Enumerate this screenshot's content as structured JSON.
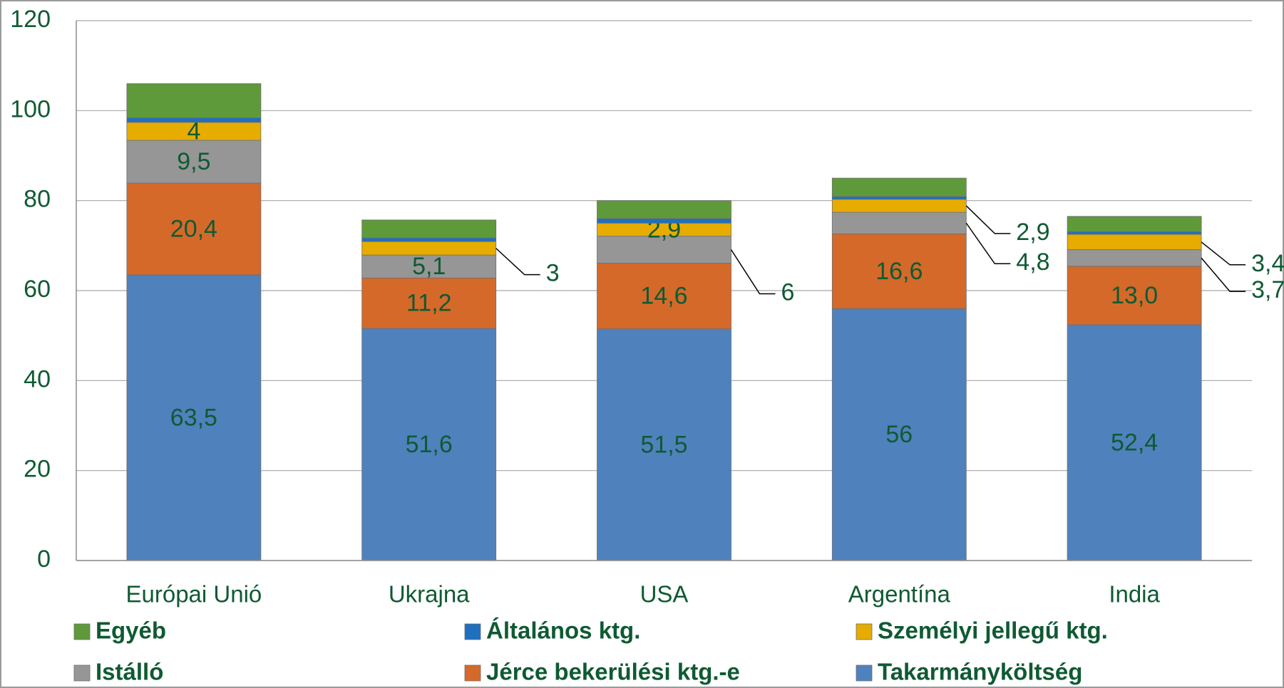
{
  "chart_data": {
    "type": "stacked_bar",
    "categories": [
      "Európai Unió",
      "Ukrajna",
      "USA",
      "Argentína",
      "India"
    ],
    "series": [
      {
        "name": "Takarmányköltség",
        "color": "#4f81bd",
        "values": [
          63.5,
          51.6,
          51.5,
          56,
          52.4
        ],
        "value_labels": [
          "63,5",
          "51,6",
          "51,5",
          "56",
          "52,4"
        ]
      },
      {
        "name": "Jérce bekerülési ktg.-e",
        "color": "#d4692a",
        "values": [
          20.4,
          11.2,
          14.6,
          16.6,
          13.0
        ],
        "value_labels": [
          "20,4",
          "11,2",
          "14,6",
          "16,6",
          "13,0"
        ]
      },
      {
        "name": "Istálló",
        "color": "#969696",
        "values": [
          9.5,
          5.1,
          6,
          4.8,
          3.7
        ],
        "value_labels": [
          "9,5",
          "5,1",
          "6",
          "4,8",
          "3,7"
        ]
      },
      {
        "name": "Személyi jellegű ktg.",
        "color": "#e6ac00",
        "values": [
          4,
          3,
          2.9,
          2.9,
          3.4
        ],
        "value_labels": [
          "4",
          "3",
          "2,9",
          "2,9",
          "3,4"
        ]
      },
      {
        "name": "Általános ktg.",
        "color": "#1f6fbf",
        "values": [
          1,
          0.8,
          1,
          0.6,
          0.6
        ]
      },
      {
        "name": "Egyéb",
        "color": "#5f9a3a",
        "values": [
          7.6,
          4,
          4,
          4.1,
          3.4
        ]
      }
    ],
    "ylim": [
      0,
      120
    ],
    "yticks": [
      0,
      20,
      40,
      60,
      80,
      100,
      120
    ],
    "grid": true
  }
}
